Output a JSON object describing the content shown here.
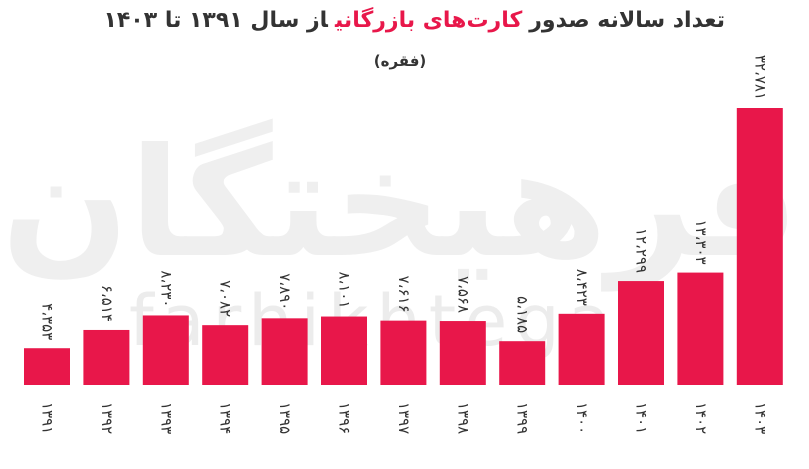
{
  "chart_data": {
    "type": "bar",
    "title": [
      "تعداد سالانه صدور",
      "کارت‌های بازرگانی",
      "از سال ۱۳۹۱ تا ۱۴۰۳"
    ],
    "title_highlight_color": "#e8174a",
    "subtitle": "(فقره)",
    "watermark": [
      "فرهیختگان",
      "farhikhtegan"
    ],
    "categories": [
      "۱۳۹۱",
      "۱۳۹۲",
      "۱۳۹۳",
      "۱۳۹۴",
      "۱۳۹۵",
      "۱۳۹۶",
      "۱۳۹۷",
      "۱۳۹۸",
      "۱۳۹۹",
      "۱۴۰۰",
      "۱۴۰۱",
      "۱۴۰۲",
      "۱۴۰۳"
    ],
    "values": [
      4353,
      6514,
      8230,
      7082,
      7890,
      8101,
      7616,
      7568,
      5185,
      8423,
      12299,
      13303,
      32781
    ],
    "value_labels": [
      "۴،۳۵۳",
      "۶،۵۱۴",
      "۸،۲۳۰",
      "۷،۰۸۲",
      "۷،۸۹۰",
      "۸،۱۰۱",
      "۷،۶۱۶",
      "۷،۵۶۸",
      "۵،۱۸۵",
      "۸،۴۲۳",
      "۱۲،۲۹۹",
      "۱۳،۳۰۳",
      "۳۲،۷۸۱"
    ],
    "color": "#e8174a"
  }
}
